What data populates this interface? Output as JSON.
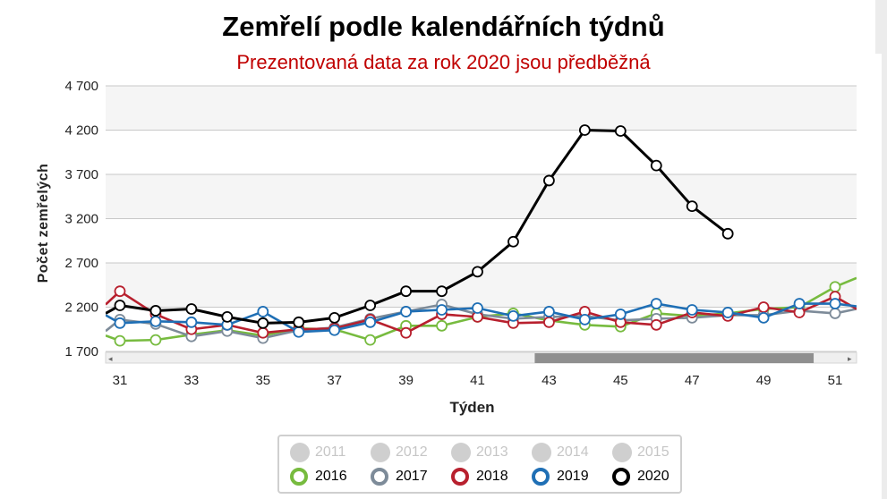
{
  "chart_data": {
    "type": "line",
    "title": "Zemřelí podle kalendářních týdnů",
    "subtitle": "Prezentovaná data za rok 2020 jsou předběžná",
    "xlabel": "Týden",
    "ylabel": "Počet zemřelých",
    "xlim": [
      30.6,
      51.6
    ],
    "ylim": [
      1700,
      4700
    ],
    "y_ticks": [
      1700,
      2200,
      2700,
      3200,
      3700,
      4200,
      4700
    ],
    "y_tick_labels": [
      "1 700",
      "2 200",
      "2 700",
      "3 200",
      "3 700",
      "4 200",
      "4 700"
    ],
    "x_ticks": [
      31,
      33,
      35,
      37,
      39,
      41,
      43,
      45,
      47,
      49,
      51
    ],
    "grid": "horizontal",
    "navigator": {
      "range": [
        42.6,
        50.4
      ]
    },
    "series": [
      {
        "name": "2016",
        "color": "#77bb3f",
        "x": [
          30.6,
          31,
          32,
          33,
          34,
          35,
          36,
          37,
          38,
          39,
          40,
          41,
          42,
          43,
          44,
          45,
          46,
          47,
          48,
          49,
          50,
          51,
          51.6
        ],
        "values": [
          1880,
          1820,
          1830,
          1890,
          1940,
          1880,
          1960,
          1950,
          1830,
          1990,
          1990,
          2090,
          2130,
          2050,
          2000,
          1980,
          2130,
          2100,
          2130,
          2180,
          2200,
          2430,
          2530
        ]
      },
      {
        "name": "2017",
        "color": "#7d8b99",
        "x": [
          30.6,
          31,
          32,
          33,
          34,
          35,
          36,
          37,
          38,
          39,
          40,
          41,
          42,
          43,
          44,
          45,
          46,
          47,
          48,
          49,
          50,
          51,
          51.6
        ],
        "values": [
          1930,
          2060,
          2010,
          1870,
          1930,
          1850,
          1940,
          1970,
          2070,
          2150,
          2230,
          2120,
          2070,
          2090,
          2100,
          2050,
          2070,
          2080,
          2110,
          2110,
          2160,
          2130,
          2180
        ]
      },
      {
        "name": "2018",
        "color": "#b8202e",
        "x": [
          30.6,
          31,
          32,
          33,
          34,
          35,
          36,
          37,
          38,
          39,
          40,
          41,
          42,
          43,
          44,
          45,
          46,
          47,
          48,
          49,
          50,
          51,
          51.6
        ],
        "values": [
          2230,
          2380,
          2120,
          1950,
          2000,
          1910,
          1950,
          1960,
          2060,
          1910,
          2120,
          2090,
          2020,
          2030,
          2150,
          2030,
          2000,
          2140,
          2100,
          2200,
          2140,
          2320,
          2180
        ]
      },
      {
        "name": "2019",
        "color": "#1f6fb5",
        "x": [
          30.6,
          31,
          32,
          33,
          34,
          35,
          36,
          37,
          38,
          39,
          40,
          41,
          42,
          43,
          44,
          45,
          46,
          47,
          48,
          49,
          50,
          51,
          51.6
        ],
        "values": [
          2110,
          2020,
          2040,
          2030,
          2000,
          2150,
          1920,
          1940,
          2030,
          2150,
          2170,
          2190,
          2100,
          2150,
          2060,
          2120,
          2240,
          2170,
          2140,
          2080,
          2240,
          2240,
          2210
        ]
      },
      {
        "name": "2020",
        "color": "#000000",
        "x": [
          30.6,
          31,
          32,
          33,
          34,
          35,
          36,
          37,
          38,
          39,
          40,
          41,
          42,
          43,
          44,
          45,
          46,
          47,
          48
        ],
        "values": [
          2130,
          2220,
          2160,
          2180,
          2090,
          2020,
          2030,
          2080,
          2220,
          2380,
          2380,
          2600,
          2940,
          3630,
          4200,
          4190,
          3800,
          3340,
          3030
        ]
      }
    ],
    "legend": {
      "placement": "bottom-center",
      "hidden": [
        "2011",
        "2012",
        "2013",
        "2014",
        "2015"
      ],
      "shown": [
        {
          "name": "2016",
          "color": "#77bb3f"
        },
        {
          "name": "2017",
          "color": "#7d8b99"
        },
        {
          "name": "2018",
          "color": "#b8202e"
        },
        {
          "name": "2019",
          "color": "#1f6fb5"
        },
        {
          "name": "2020",
          "color": "#000000"
        }
      ]
    }
  }
}
